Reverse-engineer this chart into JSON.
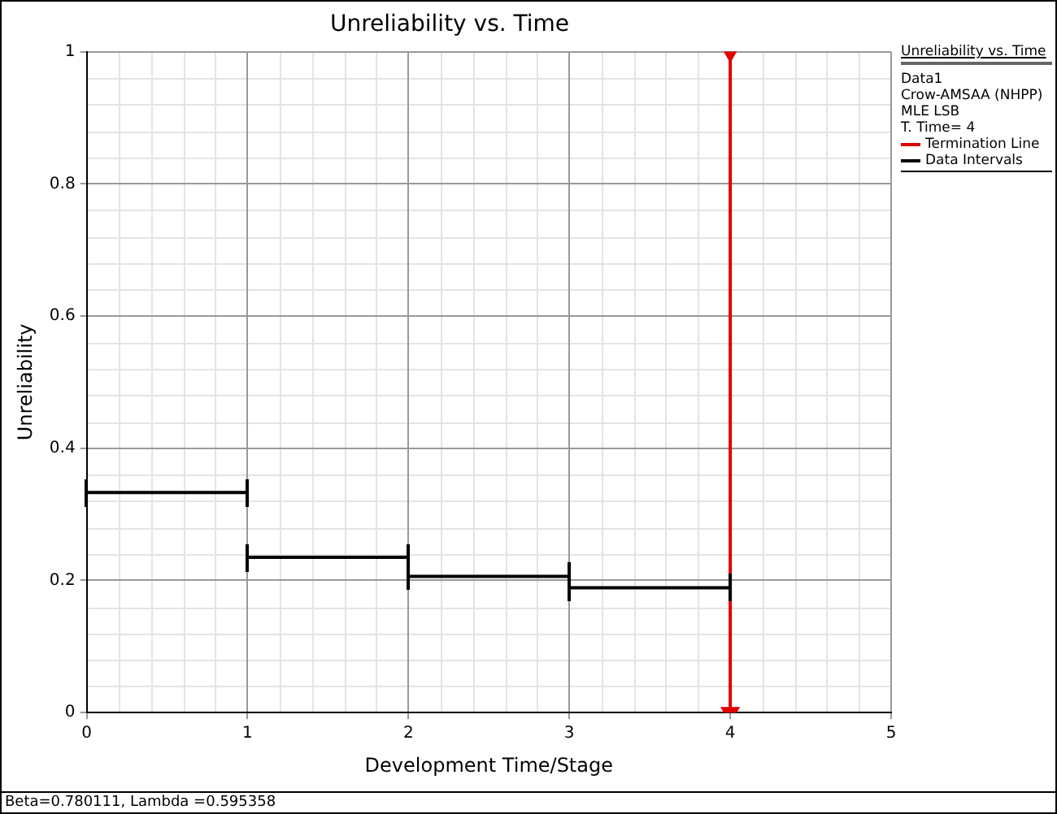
{
  "chart_data": {
    "type": "line",
    "title": "Unreliability vs. Time",
    "xlabel": "Development Time/Stage",
    "ylabel": "Unreliability",
    "legend_title": "Unreliability vs. Time",
    "series": [
      {
        "name": "Termination Line",
        "color": "#e00000",
        "x": [
          4,
          4
        ],
        "values": [
          0,
          1
        ],
        "marker": "triangle"
      },
      {
        "name": "Data Intervals",
        "color": "#000000",
        "x": [
          0,
          1,
          null,
          1,
          2,
          null,
          2,
          3,
          null,
          3,
          4
        ],
        "values": [
          0.333,
          0.333,
          null,
          0.235,
          0.235,
          null,
          0.206,
          0.206,
          null,
          0.189,
          0.189
        ],
        "marker": "none"
      }
    ],
    "xlim": [
      0,
      5
    ],
    "xticks": [
      0,
      1,
      2,
      3,
      4,
      5
    ],
    "ylim": [
      0,
      1
    ],
    "yticks": [
      0,
      0.2,
      0.4,
      0.6,
      0.8,
      1
    ],
    "grid": true,
    "legend": "right",
    "annotations": [
      "Data1",
      "Crow-AMSAA (NHPP)",
      "MLE LSB",
      "T. Time= 4",
      "Beta=0.780111, Lambda =0.595358"
    ]
  }
}
